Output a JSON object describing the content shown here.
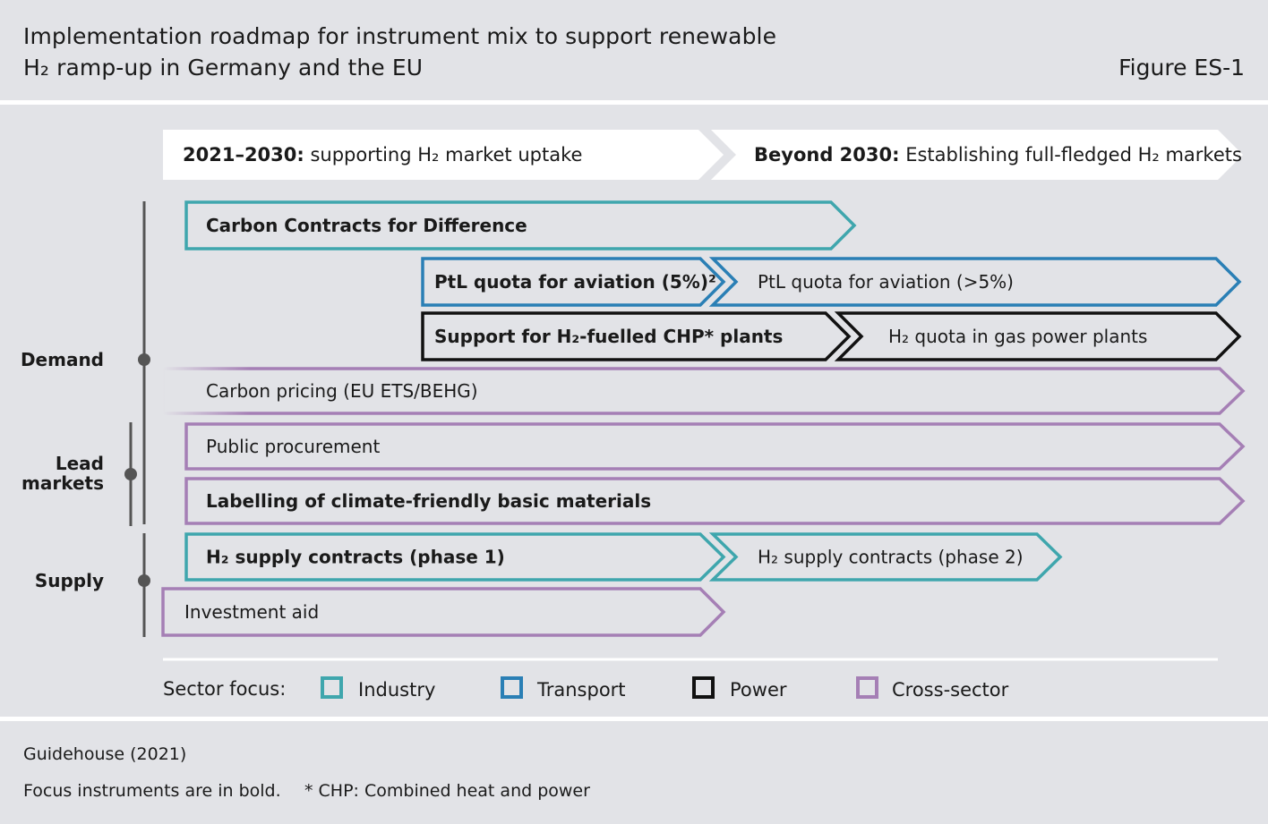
{
  "header": {
    "title_line1": "Implementation roadmap for instrument mix to support renewable",
    "title_line2": "H₂ ramp-up in Germany and the EU",
    "figure_label": "Figure ES-1"
  },
  "phases": [
    {
      "bold": "2021–2030:",
      "text": " supporting H₂ market uptake"
    },
    {
      "bold": "Beyond 2030:",
      "text": " Establishing full-fledged H₂ markets"
    }
  ],
  "groups": [
    {
      "key": "demand",
      "lines": [
        "Demand"
      ]
    },
    {
      "key": "lead_markets",
      "lines": [
        "Lead",
        "markets"
      ]
    },
    {
      "key": "supply",
      "lines": [
        "Supply"
      ]
    }
  ],
  "instruments": [
    {
      "key": "ccfd",
      "label": "Carbon Contracts for Difference",
      "bold": true,
      "sector": "industry"
    },
    {
      "key": "ptl-1",
      "label": "PtL quota for aviation (5%)²",
      "bold": true,
      "sector": "transport"
    },
    {
      "key": "ptl-2",
      "label": "PtL quota for aviation (>5%)",
      "bold": false,
      "sector": "transport"
    },
    {
      "key": "chp",
      "label": "Support for H₂-fuelled CHP* plants",
      "bold": true,
      "sector": "power"
    },
    {
      "key": "gas-quota",
      "label": "H₂ quota in gas power plants",
      "bold": false,
      "sector": "power"
    },
    {
      "key": "carbon-pricing",
      "label": "Carbon pricing (EU ETS/BEHG)",
      "bold": false,
      "sector": "cross"
    },
    {
      "key": "procurement",
      "label": "Public procurement",
      "bold": false,
      "sector": "cross"
    },
    {
      "key": "labelling",
      "label": "Labelling of climate-friendly basic materials",
      "bold": true,
      "sector": "cross"
    },
    {
      "key": "supply-1",
      "label": "H₂ supply contracts (phase 1)",
      "bold": true,
      "sector": "industry"
    },
    {
      "key": "supply-2",
      "label": "H₂ supply contracts (phase 2)",
      "bold": false,
      "sector": "industry"
    },
    {
      "key": "investment",
      "label": "Investment aid",
      "bold": false,
      "sector": "cross"
    }
  ],
  "legend": {
    "title": "Sector focus:",
    "items": [
      {
        "key": "industry",
        "label": "Industry",
        "color": "#3fa6ad"
      },
      {
        "key": "transport",
        "label": "Transport",
        "color": "#2a7fb5"
      },
      {
        "key": "power",
        "label": "Power",
        "color": "#111111"
      },
      {
        "key": "cross",
        "label": "Cross-sector",
        "color": "#a57fb5"
      }
    ]
  },
  "footer": {
    "source": "Guidehouse (2021)",
    "note_bold": "Focus instruments are in bold.",
    "note_chp": "* CHP: Combined heat and power"
  }
}
